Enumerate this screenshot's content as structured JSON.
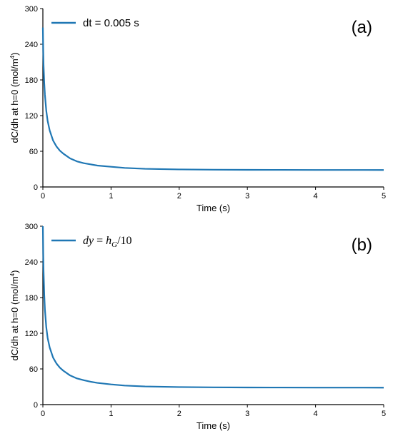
{
  "chart_data": [
    {
      "type": "line",
      "panel_label": "(a)",
      "xlabel": "Time (s)",
      "ylabel": "dC/dh at h=0 (mol/m",
      "ylabel_sup": "4",
      "ylabel_close": ")",
      "xlim": [
        0,
        5
      ],
      "ylim": [
        0,
        300
      ],
      "xticks": [
        "0",
        "1",
        "2",
        "3",
        "4",
        "5"
      ],
      "yticks": [
        "0",
        "60",
        "120",
        "180",
        "240",
        "300"
      ],
      "grid": false,
      "legend": {
        "position": "top-left",
        "math": false,
        "text": "dt = 0.005 s"
      },
      "series": [
        {
          "name": "dt = 0.005 s",
          "color": "#1f77b4",
          "x": [
            0,
            0.005,
            0.01,
            0.02,
            0.03,
            0.05,
            0.07,
            0.1,
            0.15,
            0.2,
            0.25,
            0.3,
            0.4,
            0.5,
            0.6,
            0.7,
            0.8,
            1.0,
            1.2,
            1.5,
            2.0,
            2.5,
            3.0,
            3.5,
            4.0,
            4.5,
            5.0
          ],
          "y": [
            268,
            230,
            205,
            175,
            155,
            128,
            111,
            95,
            78,
            68,
            61,
            56,
            48,
            43,
            40,
            38,
            36,
            34,
            32,
            30.5,
            29.5,
            29,
            28.8,
            28.7,
            28.6,
            28.6,
            28.5
          ]
        }
      ]
    },
    {
      "type": "line",
      "panel_label": "(b)",
      "xlabel": "Time (s)",
      "ylabel": "dC/dh at h=0 (mol/m",
      "ylabel_sup": "4",
      "ylabel_close": ")",
      "xlim": [
        0,
        5
      ],
      "ylim": [
        0,
        300
      ],
      "xticks": [
        "0",
        "1",
        "2",
        "3",
        "4",
        "5"
      ],
      "yticks": [
        "0",
        "60",
        "120",
        "180",
        "240",
        "300"
      ],
      "grid": false,
      "legend": {
        "position": "top-left",
        "math": true,
        "pre": "dy",
        "eq": " = ",
        "h": "h",
        "sub": "G",
        "post": "/10"
      },
      "series": [
        {
          "name": "dy = hG/10",
          "color": "#1f77b4",
          "x": [
            0,
            0.005,
            0.01,
            0.02,
            0.03,
            0.05,
            0.07,
            0.1,
            0.15,
            0.2,
            0.25,
            0.3,
            0.4,
            0.5,
            0.6,
            0.7,
            0.8,
            1.0,
            1.2,
            1.5,
            2.0,
            2.5,
            3.0,
            3.5,
            4.0,
            4.5,
            5.0
          ],
          "y": [
            300,
            255,
            225,
            185,
            160,
            130,
            112,
            96,
            79,
            69,
            62,
            57,
            49,
            44,
            41,
            38.5,
            36.5,
            34,
            32,
            30.5,
            29.5,
            29,
            28.8,
            28.7,
            28.6,
            28.6,
            28.5
          ]
        }
      ]
    }
  ]
}
